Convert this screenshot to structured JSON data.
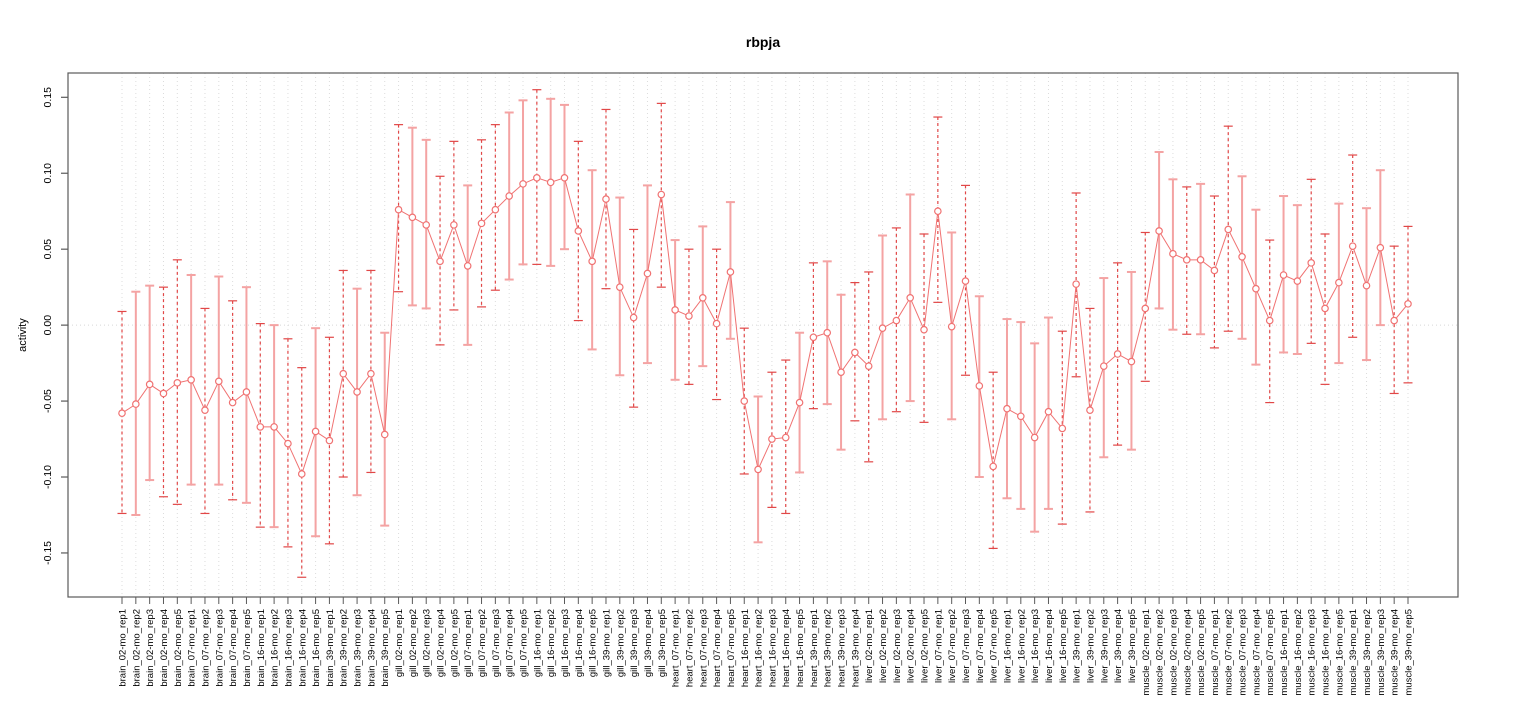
{
  "title": "rbpja",
  "ylabel": "activity",
  "chart_data": {
    "type": "line",
    "subtype": "points-with-error-bars",
    "title": "rbpja",
    "xlabel": "",
    "ylabel": "activity",
    "ylim": [
      -0.179,
      0.166
    ],
    "grid": "vertical-dotted-per-category-plus-zero-line",
    "legend": "none",
    "yticks": [
      0.15,
      0.1,
      0.05,
      0.0,
      -0.05,
      -0.1,
      -0.15
    ],
    "ytick_labels": [
      "0.15",
      "0.10",
      "0.05",
      "0.00",
      "-0.05",
      "-0.10",
      "-0.15"
    ],
    "categories": [
      "brain_02-mo_rep1",
      "brain_02-mo_rep2",
      "brain_02-mo_rep3",
      "brain_02-mo_rep4",
      "brain_02-mo_rep5",
      "brain_07-mo_rep1",
      "brain_07-mo_rep2",
      "brain_07-mo_rep3",
      "brain_07-mo_rep4",
      "brain_07-mo_rep5",
      "brain_16-mo_rep1",
      "brain_16-mo_rep2",
      "brain_16-mo_rep3",
      "brain_16-mo_rep4",
      "brain_16-mo_rep5",
      "brain_39-mo_rep1",
      "brain_39-mo_rep2",
      "brain_39-mo_rep3",
      "brain_39-mo_rep4",
      "brain_39-mo_rep5",
      "gill_02-mo_rep1",
      "gill_02-mo_rep2",
      "gill_02-mo_rep3",
      "gill_02-mo_rep4",
      "gill_02-mo_rep5",
      "gill_07-mo_rep1",
      "gill_07-mo_rep2",
      "gill_07-mo_rep3",
      "gill_07-mo_rep4",
      "gill_07-mo_rep5",
      "gill_16-mo_rep1",
      "gill_16-mo_rep2",
      "gill_16-mo_rep3",
      "gill_16-mo_rep4",
      "gill_16-mo_rep5",
      "gill_39-mo_rep1",
      "gill_39-mo_rep2",
      "gill_39-mo_rep3",
      "gill_39-mo_rep4",
      "gill_39-mo_rep5",
      "heart_07-mo_rep1",
      "heart_07-mo_rep2",
      "heart_07-mo_rep3",
      "heart_07-mo_rep4",
      "heart_07-mo_rep5",
      "heart_16-mo_rep1",
      "heart_16-mo_rep2",
      "heart_16-mo_rep3",
      "heart_16-mo_rep4",
      "heart_16-mo_rep5",
      "heart_39-mo_rep1",
      "heart_39-mo_rep2",
      "heart_39-mo_rep3",
      "heart_39-mo_rep4",
      "liver_02-mo_rep1",
      "liver_02-mo_rep2",
      "liver_02-mo_rep3",
      "liver_02-mo_rep4",
      "liver_02-mo_rep5",
      "liver_07-mo_rep1",
      "liver_07-mo_rep2",
      "liver_07-mo_rep3",
      "liver_07-mo_rep4",
      "liver_07-mo_rep5",
      "liver_16-mo_rep1",
      "liver_16-mo_rep2",
      "liver_16-mo_rep3",
      "liver_16-mo_rep4",
      "liver_16-mo_rep5",
      "liver_39-mo_rep1",
      "liver_39-mo_rep2",
      "liver_39-mo_rep3",
      "liver_39-mo_rep4",
      "liver_39-mo_rep5",
      "muscle_02-mo_rep1",
      "muscle_02-mo_rep2",
      "muscle_02-mo_rep3",
      "muscle_02-mo_rep4",
      "muscle_02-mo_rep5",
      "muscle_07-mo_rep1",
      "muscle_07-mo_rep2",
      "muscle_07-mo_rep3",
      "muscle_07-mo_rep4",
      "muscle_07-mo_rep5",
      "muscle_16-mo_rep1",
      "muscle_16-mo_rep2",
      "muscle_16-mo_rep3",
      "muscle_16-mo_rep4",
      "muscle_16-mo_rep5",
      "muscle_39-mo_rep1",
      "muscle_39-mo_rep2",
      "muscle_39-mo_rep3",
      "muscle_39-mo_rep4",
      "muscle_39-mo_rep5"
    ],
    "series": [
      {
        "name": "activity",
        "means": [
          -0.058,
          -0.052,
          -0.039,
          -0.045,
          -0.038,
          -0.036,
          -0.056,
          -0.037,
          -0.051,
          -0.044,
          -0.067,
          -0.067,
          -0.078,
          -0.098,
          -0.07,
          -0.076,
          -0.032,
          -0.044,
          -0.032,
          -0.072,
          0.076,
          0.071,
          0.066,
          0.042,
          0.066,
          0.039,
          0.067,
          0.076,
          0.085,
          0.093,
          0.097,
          0.094,
          0.097,
          0.062,
          0.042,
          0.083,
          0.025,
          0.005,
          0.034,
          0.086,
          0.01,
          0.006,
          0.018,
          0.001,
          0.035,
          -0.05,
          -0.095,
          -0.075,
          -0.074,
          -0.051,
          -0.008,
          -0.005,
          -0.031,
          -0.018,
          -0.027,
          -0.002,
          0.003,
          0.018,
          -0.003,
          0.075,
          -0.001,
          0.029,
          -0.04,
          -0.093,
          -0.055,
          -0.06,
          -0.074,
          -0.057,
          -0.068,
          0.027,
          -0.056,
          -0.027,
          -0.019,
          -0.024,
          0.011,
          0.062,
          0.047,
          0.043,
          0.043,
          0.036,
          0.063,
          0.045,
          0.024,
          0.003,
          0.033,
          0.029,
          0.041,
          0.011,
          0.028,
          0.052,
          0.026,
          0.051,
          0.003,
          0.014
        ],
        "lower": [
          -0.124,
          -0.125,
          -0.102,
          -0.113,
          -0.118,
          -0.105,
          -0.124,
          -0.105,
          -0.115,
          -0.117,
          -0.133,
          -0.133,
          -0.146,
          -0.166,
          -0.139,
          -0.144,
          -0.1,
          -0.112,
          -0.097,
          -0.132,
          0.022,
          0.013,
          0.011,
          -0.013,
          0.01,
          -0.013,
          0.012,
          0.023,
          0.03,
          0.04,
          0.04,
          0.039,
          0.05,
          0.003,
          -0.016,
          0.024,
          -0.033,
          -0.054,
          -0.025,
          0.025,
          -0.036,
          -0.039,
          -0.027,
          -0.049,
          -0.009,
          -0.098,
          -0.143,
          -0.12,
          -0.124,
          -0.097,
          -0.055,
          -0.052,
          -0.082,
          -0.063,
          -0.09,
          -0.062,
          -0.057,
          -0.05,
          -0.064,
          0.015,
          -0.062,
          -0.033,
          -0.1,
          -0.147,
          -0.114,
          -0.121,
          -0.136,
          -0.121,
          -0.131,
          -0.034,
          -0.123,
          -0.087,
          -0.079,
          -0.082,
          -0.037,
          0.011,
          -0.003,
          -0.006,
          -0.006,
          -0.015,
          -0.004,
          -0.009,
          -0.026,
          -0.051,
          -0.018,
          -0.019,
          -0.012,
          -0.039,
          -0.025,
          -0.008,
          -0.023,
          0.0,
          -0.045,
          -0.038
        ],
        "upper": [
          0.009,
          0.022,
          0.026,
          0.025,
          0.043,
          0.033,
          0.011,
          0.032,
          0.016,
          0.025,
          0.001,
          0.0,
          -0.009,
          -0.028,
          -0.002,
          -0.008,
          0.036,
          0.024,
          0.036,
          -0.005,
          0.132,
          0.13,
          0.122,
          0.098,
          0.121,
          0.092,
          0.122,
          0.132,
          0.14,
          0.148,
          0.155,
          0.149,
          0.145,
          0.121,
          0.102,
          0.142,
          0.084,
          0.063,
          0.092,
          0.146,
          0.056,
          0.05,
          0.065,
          0.05,
          0.081,
          -0.002,
          -0.047,
          -0.031,
          -0.023,
          -0.005,
          0.041,
          0.042,
          0.02,
          0.028,
          0.035,
          0.059,
          0.064,
          0.086,
          0.06,
          0.137,
          0.061,
          0.092,
          0.019,
          -0.031,
          0.004,
          0.002,
          -0.012,
          0.005,
          -0.004,
          0.087,
          0.011,
          0.031,
          0.041,
          0.035,
          0.061,
          0.114,
          0.096,
          0.091,
          0.093,
          0.085,
          0.131,
          0.098,
          0.076,
          0.056,
          0.085,
          0.079,
          0.096,
          0.06,
          0.08,
          0.112,
          0.077,
          0.102,
          0.052,
          0.065
        ],
        "bar_styles": [
          "d",
          "s",
          "s",
          "d",
          "d",
          "s",
          "d",
          "s",
          "d",
          "s",
          "d",
          "s",
          "d",
          "d",
          "s",
          "d",
          "d",
          "s",
          "d",
          "s",
          "d",
          "s",
          "s",
          "d",
          "d",
          "s",
          "d",
          "d",
          "s",
          "s",
          "d",
          "s",
          "s",
          "d",
          "s",
          "d",
          "s",
          "d",
          "s",
          "d",
          "s",
          "d",
          "s",
          "d",
          "s",
          "d",
          "s",
          "d",
          "d",
          "s",
          "d",
          "s",
          "s",
          "d",
          "d",
          "s",
          "d",
          "s",
          "d",
          "d",
          "s",
          "d",
          "s",
          "d",
          "s",
          "s",
          "s",
          "s",
          "d",
          "d",
          "d",
          "s",
          "d",
          "s",
          "d",
          "s",
          "s",
          "d",
          "s",
          "d",
          "d",
          "s",
          "s",
          "d",
          "s",
          "s",
          "d",
          "d",
          "s",
          "d",
          "s",
          "s",
          "d",
          "d"
        ]
      }
    ],
    "colors": {
      "point_line": "#f07272",
      "marker_fill": "#ffffff",
      "bar_dark": "#e14747",
      "bar_light": "#f4a3a3",
      "grid": "#dcdcdc",
      "zero_line": "#d8d8d8",
      "frame": "#5a5a5a",
      "text": "#000000"
    }
  }
}
